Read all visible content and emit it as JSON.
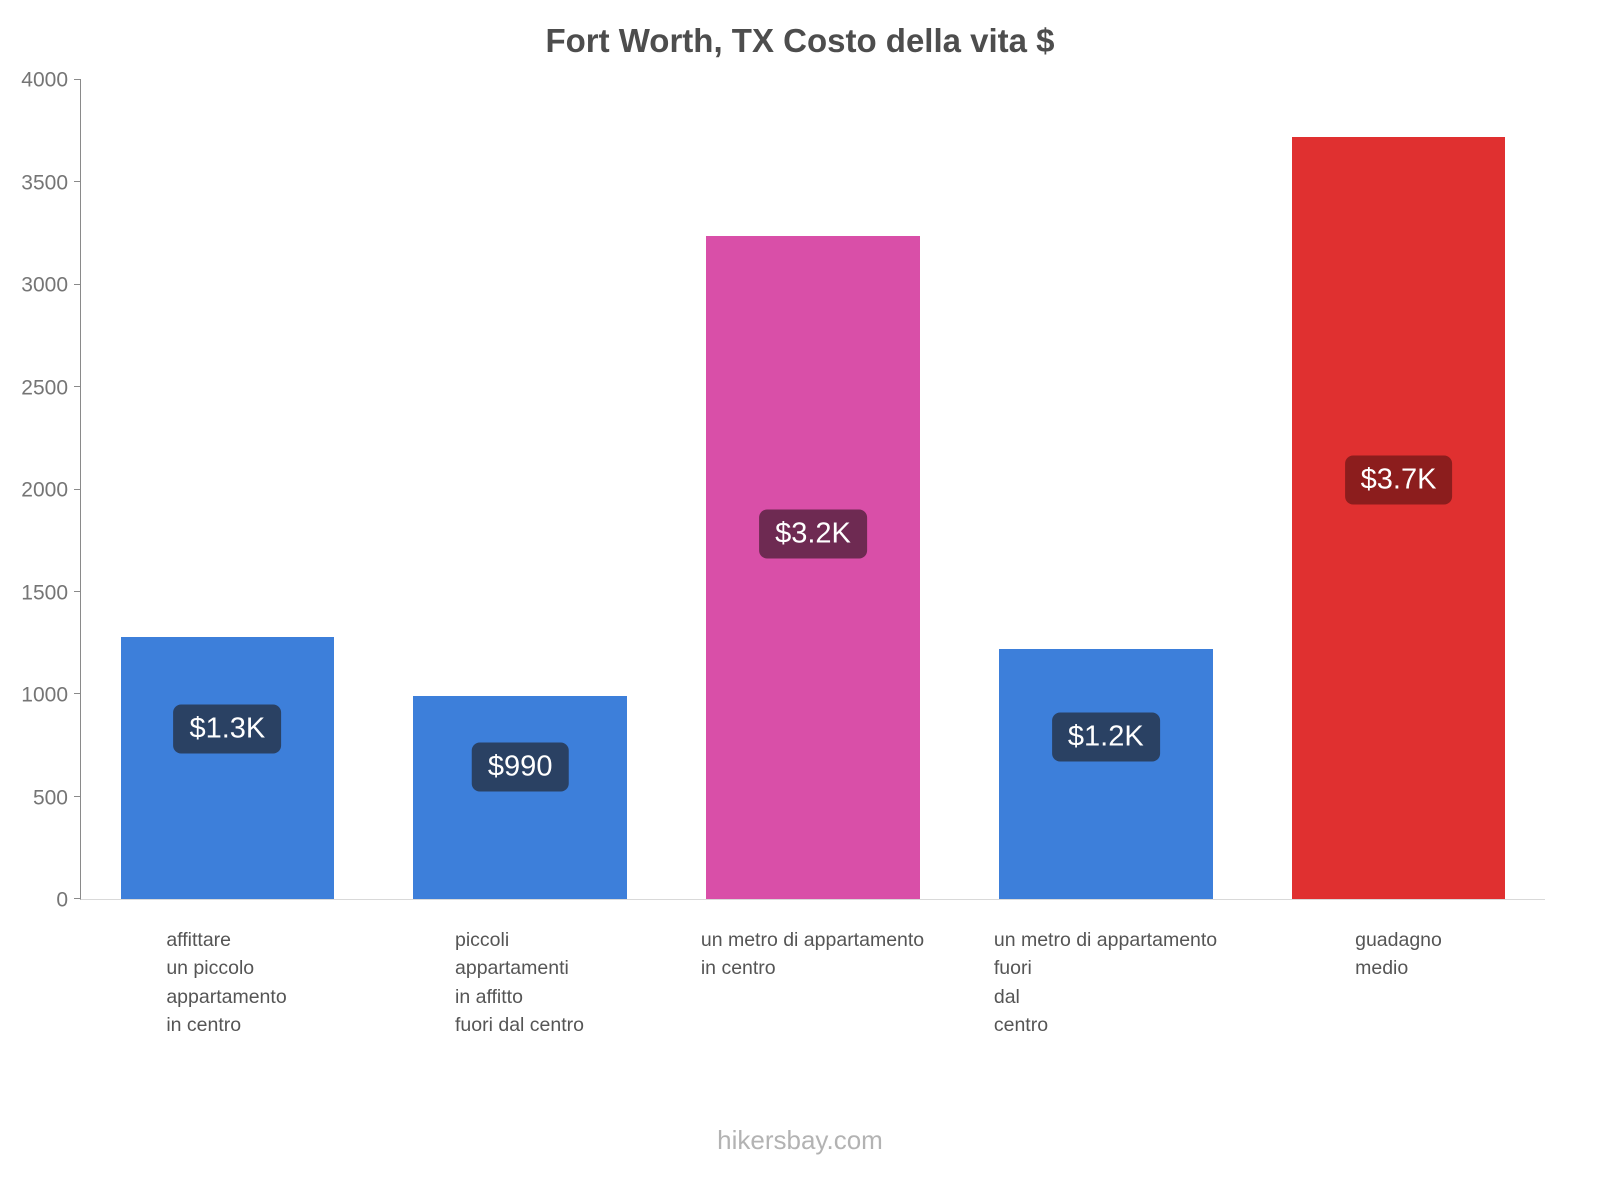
{
  "page": {
    "footer": "hikersbay.com"
  },
  "chart_data": {
    "type": "bar",
    "title": "Fort Worth, TX Costo della vita $",
    "categories": [
      "affittare\nun piccolo\nappartamento\nin centro",
      "piccoli\nappartamenti\nin affitto\nfuori dal centro",
      "un metro di appartamento\nin centro",
      "un metro di appartamento\nfuori\ndal\ncentro",
      "guadagno\nmedio"
    ],
    "values": [
      1280,
      990,
      3240,
      1220,
      3720
    ],
    "value_labels": [
      "$1.3K",
      "$990",
      "$3.2K",
      "$1.2K",
      "$3.7K"
    ],
    "bar_colors": [
      "#3d7fda",
      "#3d7fda",
      "#d94fa8",
      "#3d7fda",
      "#e03030"
    ],
    "badge_colors": [
      "#2a4163",
      "#2a4163",
      "#6e2a52",
      "#2a4163",
      "#8c1d1d"
    ],
    "xlabel": "",
    "ylabel": "",
    "ylim": [
      0,
      4000
    ],
    "yticks": [
      0,
      500,
      1000,
      1500,
      2000,
      2500,
      3000,
      3500,
      4000
    ],
    "grid": false,
    "legend": false
  }
}
